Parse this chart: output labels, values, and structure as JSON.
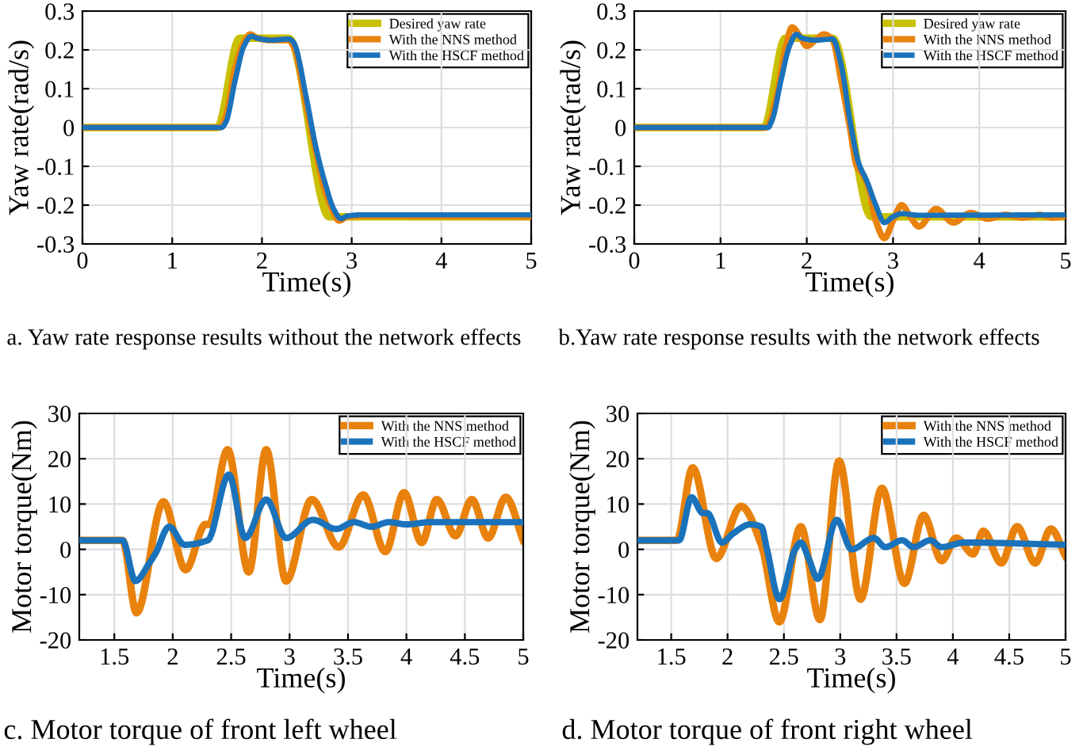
{
  "chart_data": [
    {
      "type": "line",
      "xlabel": "Time(s)",
      "ylabel": "Yaw rate(rad/s)",
      "xlim": [
        0,
        5
      ],
      "ylim": [
        -0.3,
        0.3
      ],
      "xticks": [
        0,
        1,
        2,
        3,
        4,
        5
      ],
      "yticks": [
        -0.3,
        -0.2,
        -0.1,
        0,
        0.1,
        0.2,
        0.3
      ],
      "grid": true,
      "legend": "top right",
      "annotations": [
        "a. Yaw rate response results without the network effects"
      ],
      "series": [
        {
          "name": "Desired yaw rate",
          "color": "#c8c000",
          "x": [
            0,
            1.5,
            1.75,
            1.85,
            2.3,
            2.75,
            2.85,
            5
          ],
          "values": [
            0,
            0,
            0.23,
            0.23,
            0.23,
            -0.23,
            -0.23,
            -0.23
          ]
        },
        {
          "name": "With the NNS method",
          "color": "#e8820c",
          "x": [
            0,
            1.53,
            1.6,
            1.7,
            1.8,
            1.87,
            1.95,
            2.1,
            2.3,
            2.35,
            2.5,
            2.6,
            2.7,
            2.8,
            2.86,
            2.95,
            3.1,
            5
          ],
          "values": [
            0,
            0,
            0.03,
            0.15,
            0.22,
            0.24,
            0.23,
            0.225,
            0.225,
            0.21,
            0.05,
            -0.06,
            -0.16,
            -0.22,
            -0.24,
            -0.23,
            -0.228,
            -0.23
          ]
        },
        {
          "name": "With the HSCF method",
          "color": "#1a72bb",
          "x": [
            0,
            1.55,
            1.6,
            1.7,
            1.8,
            1.88,
            1.95,
            2.1,
            2.3,
            2.35,
            2.5,
            2.6,
            2.7,
            2.8,
            2.88,
            2.95,
            3.1,
            5
          ],
          "values": [
            0,
            0,
            0.015,
            0.12,
            0.21,
            0.235,
            0.23,
            0.225,
            0.228,
            0.22,
            0.07,
            -0.05,
            -0.14,
            -0.21,
            -0.235,
            -0.228,
            -0.225,
            -0.225
          ]
        }
      ]
    },
    {
      "type": "line",
      "xlabel": "Time(s)",
      "ylabel": "Yaw rate(rad/s)",
      "xlim": [
        0,
        5
      ],
      "ylim": [
        -0.3,
        0.3
      ],
      "xticks": [
        0,
        1,
        2,
        3,
        4,
        5
      ],
      "yticks": [
        -0.3,
        -0.2,
        -0.1,
        0,
        0.1,
        0.2,
        0.3
      ],
      "grid": true,
      "legend": "top right",
      "annotations": [
        "b.Yaw rate response results with the network effects"
      ],
      "series": [
        {
          "name": "Desired yaw rate",
          "color": "#c8c000",
          "x": [
            0,
            1.5,
            1.75,
            1.85,
            2.3,
            2.75,
            2.85,
            5
          ],
          "values": [
            0,
            0,
            0.23,
            0.23,
            0.23,
            -0.23,
            -0.23,
            -0.23
          ]
        },
        {
          "name": "With the NNS method",
          "color": "#e8820c",
          "x": [
            0,
            1.53,
            1.65,
            1.75,
            1.83,
            1.92,
            2.0,
            2.1,
            2.2,
            2.3,
            2.4,
            2.5,
            2.58,
            2.65,
            2.72,
            2.8,
            2.9,
            3.0,
            3.1,
            3.2,
            3.3,
            3.5,
            3.7,
            3.9,
            4.1,
            4.3,
            4.5,
            4.7,
            4.85,
            5
          ],
          "values": [
            0,
            0,
            0.08,
            0.2,
            0.258,
            0.235,
            0.21,
            0.225,
            0.24,
            0.225,
            0.12,
            0.0,
            -0.1,
            -0.12,
            -0.16,
            -0.24,
            -0.285,
            -0.24,
            -0.2,
            -0.23,
            -0.255,
            -0.21,
            -0.245,
            -0.22,
            -0.235,
            -0.225,
            -0.232,
            -0.225,
            -0.232,
            -0.228
          ]
        },
        {
          "name": "With the HSCF method",
          "color": "#1a72bb",
          "x": [
            0,
            1.55,
            1.6,
            1.7,
            1.8,
            1.88,
            1.95,
            2.1,
            2.3,
            2.4,
            2.5,
            2.6,
            2.7,
            2.8,
            2.9,
            3.0,
            3.1,
            3.3,
            5
          ],
          "values": [
            0,
            0,
            0.02,
            0.12,
            0.21,
            0.24,
            0.23,
            0.225,
            0.228,
            0.16,
            0.02,
            -0.09,
            -0.14,
            -0.2,
            -0.245,
            -0.23,
            -0.222,
            -0.226,
            -0.225
          ]
        }
      ]
    },
    {
      "type": "line",
      "xlabel": "Time(s)",
      "ylabel": "Motor torque(Nm)",
      "xlim": [
        1.2,
        5
      ],
      "ylim": [
        -20,
        30
      ],
      "xticks": [
        1.5,
        2,
        2.5,
        3,
        3.5,
        4,
        4.5,
        5
      ],
      "yticks": [
        -20,
        -10,
        0,
        10,
        20,
        30
      ],
      "grid": true,
      "legend": "top right",
      "annotations": [
        "c. Motor torque of front left wheel"
      ],
      "series": [
        {
          "name": "With the NNS method",
          "color": "#e8820c",
          "x": [
            1.2,
            1.57,
            1.69,
            1.92,
            2.11,
            2.28,
            2.31,
            2.47,
            2.65,
            2.8,
            2.97,
            3.19,
            3.42,
            3.63,
            3.82,
            3.98,
            4.13,
            4.26,
            4.42,
            4.56,
            4.7,
            4.85,
            5
          ],
          "values": [
            2,
            2,
            -14,
            10.5,
            -4.5,
            5.5,
            5.5,
            22,
            -5,
            22,
            -7,
            11,
            0.5,
            12,
            -0.5,
            12.5,
            1.5,
            11,
            3,
            11,
            2.5,
            11.5,
            2
          ]
        },
        {
          "name": "With the HSCF method",
          "color": "#1a72bb",
          "x": [
            1.2,
            1.57,
            1.68,
            1.8,
            1.85,
            1.97,
            2.1,
            2.3,
            2.48,
            2.62,
            2.8,
            2.97,
            3.2,
            3.4,
            3.55,
            3.7,
            3.85,
            4.0,
            4.2,
            5
          ],
          "values": [
            2,
            2,
            -7,
            -3,
            -1,
            5,
            1,
            2,
            16.5,
            2.5,
            11,
            2.5,
            6.5,
            4.5,
            6,
            5,
            6,
            5.5,
            6,
            6
          ]
        }
      ]
    },
    {
      "type": "line",
      "xlabel": "Time(s)",
      "ylabel": "Motor torque(Nm)",
      "xlim": [
        1.2,
        5
      ],
      "ylim": [
        -20,
        30
      ],
      "xticks": [
        1.5,
        2,
        2.5,
        3,
        3.5,
        4,
        4.5,
        5
      ],
      "yticks": [
        -20,
        -10,
        0,
        10,
        20,
        30
      ],
      "grid": true,
      "legend": "top right",
      "annotations": [
        "d. Motor torque of front right wheel"
      ],
      "series": [
        {
          "name": "With the NNS method",
          "color": "#e8820c",
          "x": [
            1.2,
            1.55,
            1.69,
            1.9,
            2.12,
            2.3,
            2.46,
            2.65,
            2.82,
            2.99,
            3.18,
            3.37,
            3.57,
            3.74,
            3.9,
            4.03,
            4.18,
            4.27,
            4.43,
            4.57,
            4.73,
            4.87,
            5
          ],
          "values": [
            2,
            2,
            18,
            -2,
            9.5,
            1,
            -16,
            5,
            -15.5,
            19.5,
            -11,
            13.5,
            -7.5,
            7.5,
            -2.5,
            2.5,
            -1,
            4,
            -3,
            5,
            -3,
            4.5,
            -1.5
          ]
        },
        {
          "name": "With the HSCF method",
          "color": "#1a72bb",
          "x": [
            1.2,
            1.57,
            1.68,
            1.78,
            1.82,
            1.95,
            2.05,
            2.2,
            2.3,
            2.35,
            2.46,
            2.6,
            2.65,
            2.72,
            2.8,
            2.97,
            3.1,
            3.3,
            3.4,
            3.55,
            3.65,
            3.8,
            3.9,
            4.1,
            5
          ],
          "values": [
            2,
            2,
            11.5,
            8,
            8,
            1.5,
            3.5,
            5.5,
            5,
            0,
            -11,
            0,
            1.5,
            -2,
            -6.5,
            6.5,
            0,
            2.5,
            0.5,
            2,
            0.5,
            2,
            0.5,
            1.5,
            1
          ]
        }
      ]
    }
  ]
}
